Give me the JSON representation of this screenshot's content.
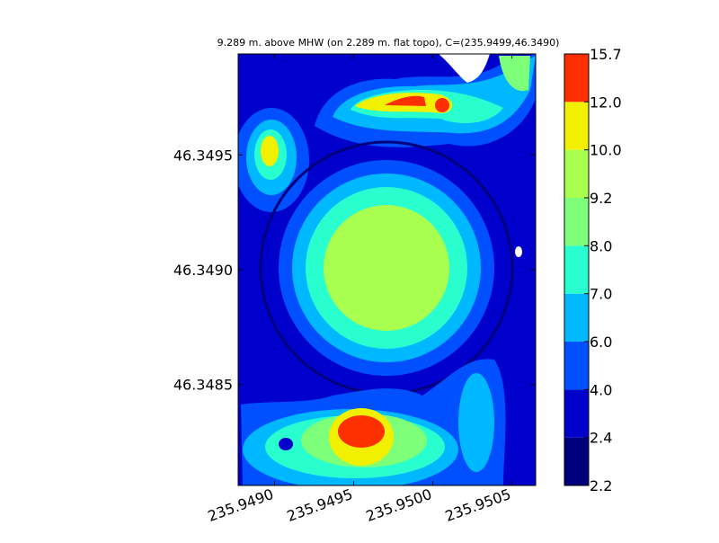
{
  "chart_data": {
    "type": "contour",
    "title": "9.289 m. above MHW (on 2.289 m. flat topo), C=(235.9499,46.3490)",
    "xlim": [
      235.94877,
      235.95065
    ],
    "ylim": [
      46.34806,
      46.34994
    ],
    "xticks": [
      {
        "value": 235.949,
        "label": "235.9490"
      },
      235.9495,
      {
        "value": 235.95,
        "label": "235.9500"
      },
      235.9505
    ],
    "yticks": [
      46.3485,
      {
        "value": 46.349,
        "label": "46.3490"
      },
      46.3495
    ],
    "levels": [
      2.2,
      2.4,
      {
        "value": 4,
        "label": "4.0"
      },
      {
        "value": 6,
        "label": "6.0"
      },
      {
        "value": 7,
        "label": "7.0"
      },
      {
        "value": 8,
        "label": "8.0"
      },
      9.2,
      {
        "value": 10,
        "label": "10.0"
      },
      {
        "value": 12,
        "label": "12.0"
      },
      15.7
    ],
    "colors": [
      "#00007f",
      "#0000cd",
      "#0050ff",
      "#00b8ff",
      "#29ffce",
      "#7dff7a",
      "#a9ff4f",
      "#f0f000",
      "#ff3000"
    ]
  }
}
